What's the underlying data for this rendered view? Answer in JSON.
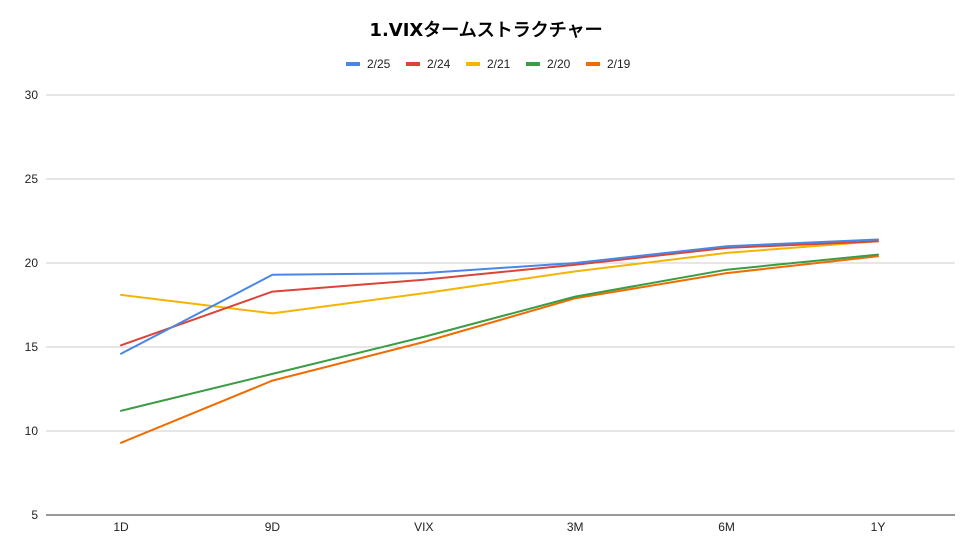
{
  "chart_data": {
    "type": "line",
    "title": "1.VIXタームストラクチャー",
    "xlabel": "",
    "ylabel": "",
    "categories": [
      "1D",
      "9D",
      "VIX",
      "3M",
      "6M",
      "1Y"
    ],
    "ylim": [
      5,
      30
    ],
    "yticks": [
      5,
      10,
      15,
      20,
      25,
      30
    ],
    "grid": true,
    "legend_position": "top",
    "series": [
      {
        "name": "2/25",
        "color": "#4a86e8",
        "values": [
          14.6,
          19.3,
          19.4,
          20.0,
          21.0,
          21.4
        ]
      },
      {
        "name": "2/24",
        "color": "#db4437",
        "values": [
          15.1,
          18.3,
          19.0,
          19.9,
          20.9,
          21.3
        ]
      },
      {
        "name": "2/21",
        "color": "#f4b400",
        "values": [
          18.1,
          17.0,
          18.2,
          19.5,
          20.6,
          21.3
        ]
      },
      {
        "name": "2/20",
        "color": "#3a9c45",
        "values": [
          11.2,
          13.4,
          15.6,
          18.0,
          19.6,
          20.5
        ]
      },
      {
        "name": "2/19",
        "color": "#ef6c00",
        "values": [
          9.3,
          13.0,
          15.3,
          17.9,
          19.4,
          20.4
        ]
      }
    ]
  }
}
